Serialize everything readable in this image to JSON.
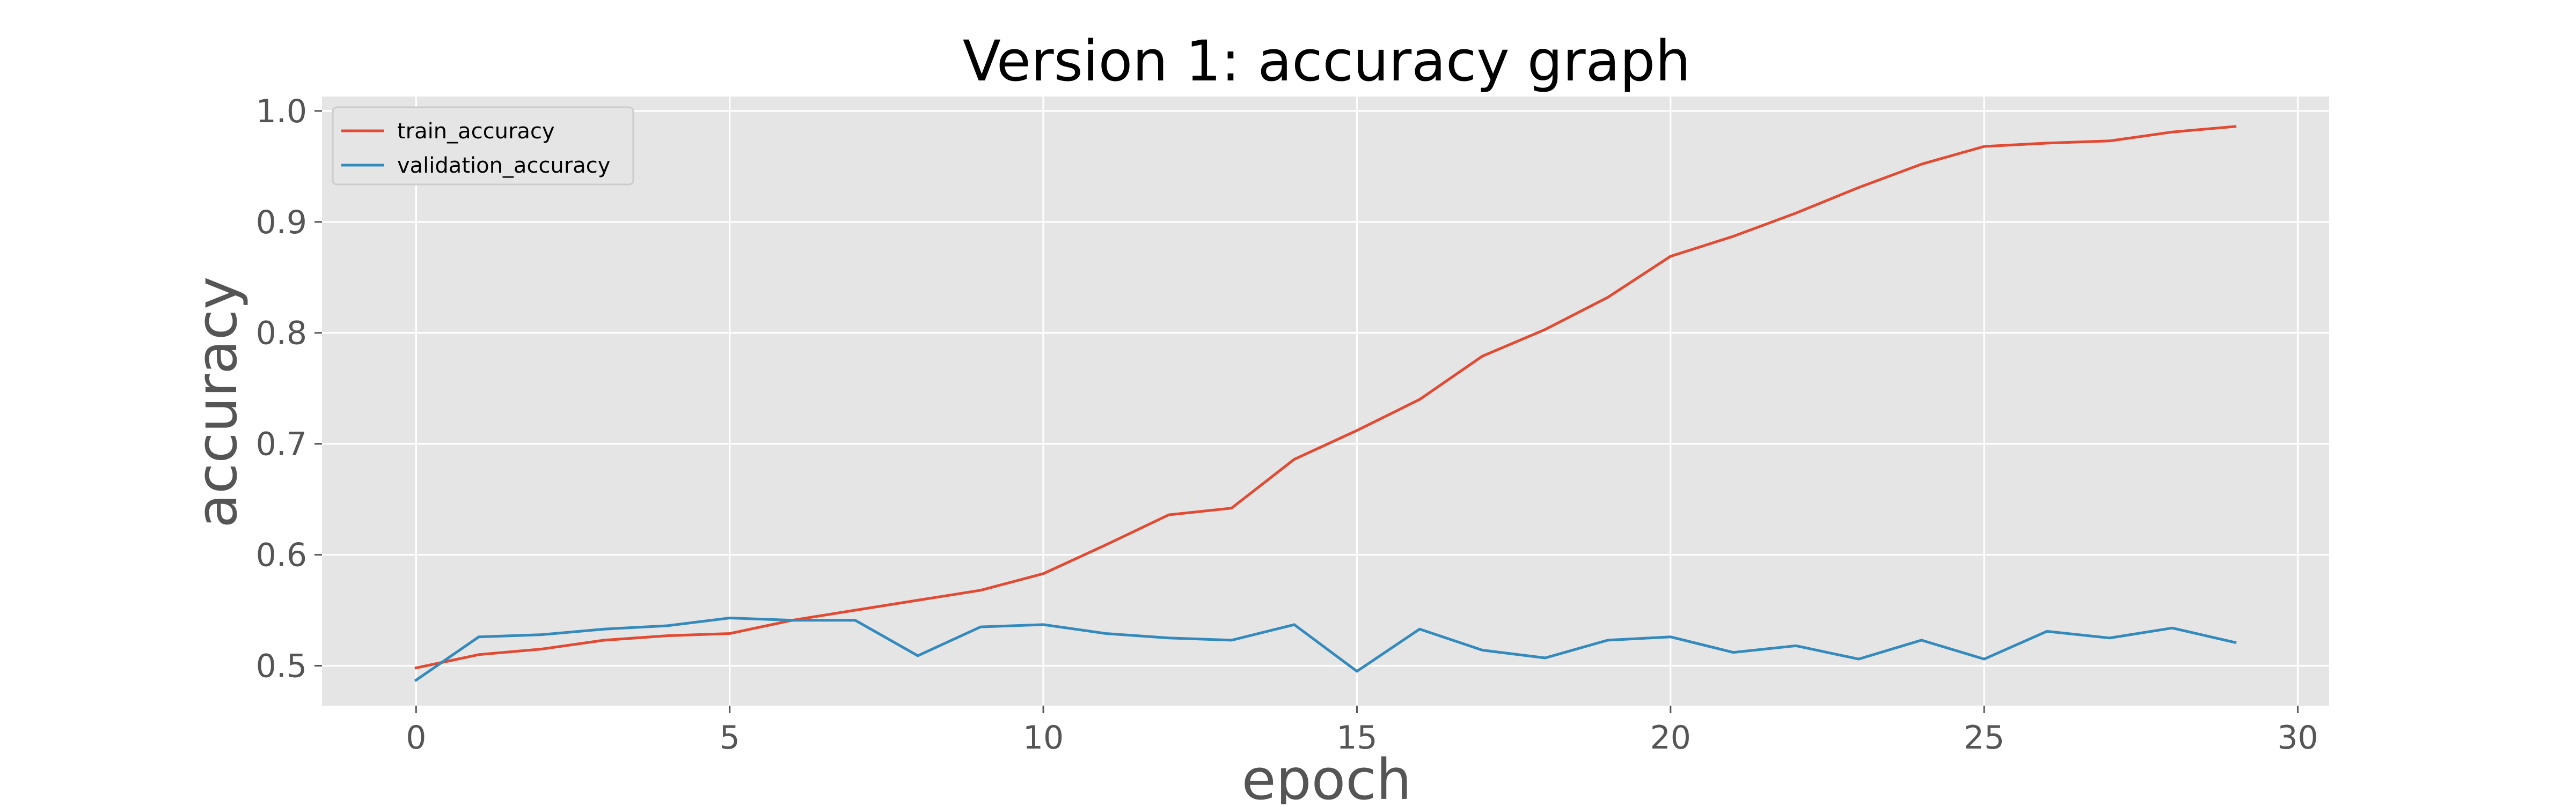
{
  "chart_data": {
    "type": "line",
    "title": "Version 1: accuracy graph",
    "xlabel": "epoch",
    "ylabel": "accuracy",
    "xlim": [
      -1.5,
      30.5
    ],
    "ylim": [
      0.464,
      1.013
    ],
    "x_ticks": [
      0,
      5,
      10,
      15,
      20,
      25,
      30
    ],
    "y_ticks": [
      0.5,
      0.6,
      0.7,
      0.8,
      0.9,
      1.0
    ],
    "grid": true,
    "legend_position": "upper-left",
    "x": [
      0,
      1,
      2,
      3,
      4,
      5,
      6,
      7,
      8,
      9,
      10,
      11,
      12,
      13,
      14,
      15,
      16,
      17,
      18,
      19,
      20,
      21,
      22,
      23,
      24,
      25,
      26,
      27,
      28,
      29
    ],
    "series": [
      {
        "name": "train_accuracy",
        "color": "#E24A33",
        "values": [
          0.498,
          0.51,
          0.515,
          0.523,
          0.527,
          0.529,
          0.541,
          0.55,
          0.559,
          0.568,
          0.583,
          0.609,
          0.636,
          0.642,
          0.686,
          0.712,
          0.74,
          0.779,
          0.803,
          0.832,
          0.869,
          0.887,
          0.908,
          0.931,
          0.952,
          0.968,
          0.971,
          0.973,
          0.981,
          0.986
        ]
      },
      {
        "name": "validation_accuracy",
        "color": "#348ABD",
        "values": [
          0.487,
          0.526,
          0.528,
          0.533,
          0.536,
          0.543,
          0.541,
          0.541,
          0.509,
          0.535,
          0.537,
          0.529,
          0.525,
          0.523,
          0.537,
          0.495,
          0.533,
          0.514,
          0.507,
          0.523,
          0.526,
          0.512,
          0.518,
          0.506,
          0.523,
          0.506,
          0.531,
          0.525,
          0.534,
          0.521
        ]
      }
    ]
  },
  "colors": {
    "plot_background": "#E5E5E5",
    "grid": "#FFFFFF",
    "tick_text": "#555555"
  }
}
